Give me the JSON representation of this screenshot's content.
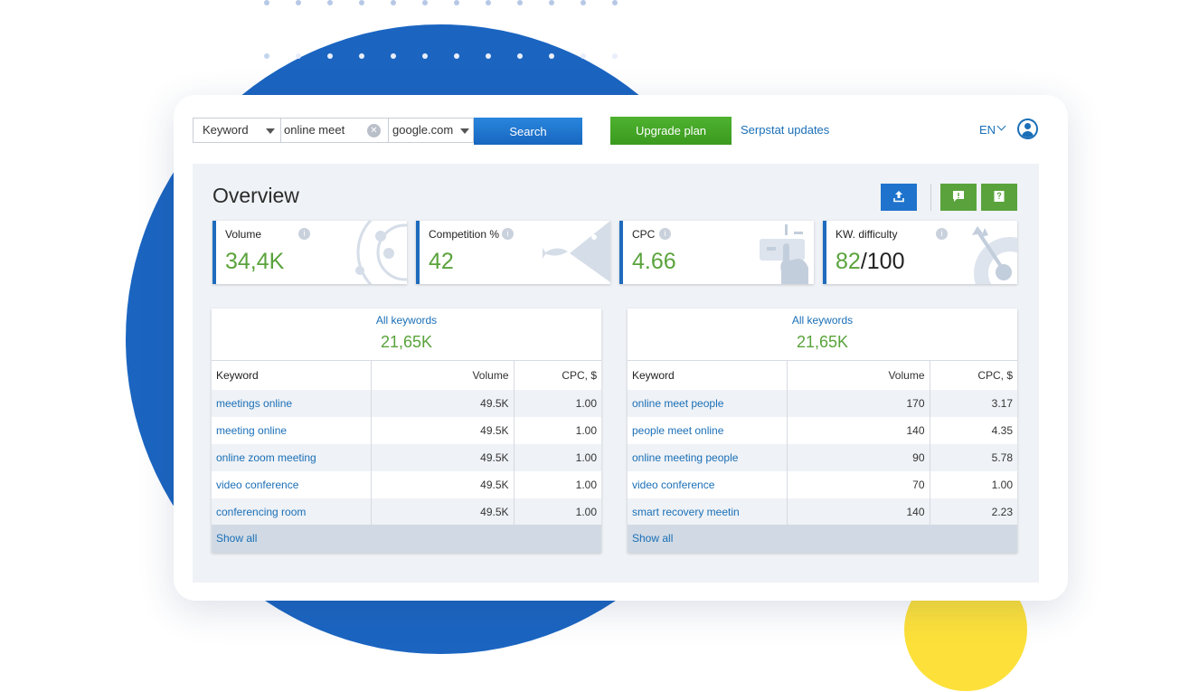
{
  "toolbar": {
    "search_type": "Keyword",
    "query": "online meet",
    "database": "google.com",
    "search_button": "Search",
    "upgrade_button": "Upgrade plan",
    "updates_link": "Serpstat updates",
    "language": "EN"
  },
  "overview": {
    "title": "Overview",
    "metrics": [
      {
        "label": "Volume",
        "value": "34,4K",
        "suffix": "",
        "icon": "radar-icon"
      },
      {
        "label": "Competition %",
        "value": "42",
        "suffix": "",
        "icon": "fish-icon"
      },
      {
        "label": "CPC",
        "value": "4.66",
        "suffix": "",
        "icon": "click-hand-icon"
      },
      {
        "label": "KW. difficulty",
        "value": "82",
        "suffix": "/100",
        "icon": "target-arrow-icon"
      }
    ]
  },
  "tables": [
    {
      "header_label": "All keywords",
      "count": "21,65K",
      "columns": [
        "Keyword",
        "Volume",
        "CPC, $"
      ],
      "rows": [
        {
          "keyword": "meetings online",
          "volume": "49.5K",
          "cpc": "1.00"
        },
        {
          "keyword": "meeting online",
          "volume": "49.5K",
          "cpc": "1.00"
        },
        {
          "keyword": "online zoom meeting",
          "volume": "49.5K",
          "cpc": "1.00"
        },
        {
          "keyword": "video conference",
          "volume": "49.5K",
          "cpc": "1.00"
        },
        {
          "keyword": "conferencing room",
          "volume": "49.5K",
          "cpc": "1.00"
        }
      ],
      "show_all": "Show all"
    },
    {
      "header_label": "All keywords",
      "count": "21,65K",
      "columns": [
        "Keyword",
        "Volume",
        "CPC, $"
      ],
      "rows": [
        {
          "keyword": "online meet people",
          "volume": "170",
          "cpc": "3.17"
        },
        {
          "keyword": "people meet online",
          "volume": "140",
          "cpc": "4.35"
        },
        {
          "keyword": "online meeting people",
          "volume": "90",
          "cpc": "5.78"
        },
        {
          "keyword": "video conference",
          "volume": "70",
          "cpc": "1.00"
        },
        {
          "keyword": "smart recovery meetin",
          "volume": "140",
          "cpc": "2.23"
        }
      ],
      "show_all": "Show all"
    }
  ],
  "colors": {
    "brand_blue": "#1b65c1",
    "accent_green": "#5aa33c",
    "link_blue": "#1a6fb7",
    "yellow": "#fde13a"
  }
}
